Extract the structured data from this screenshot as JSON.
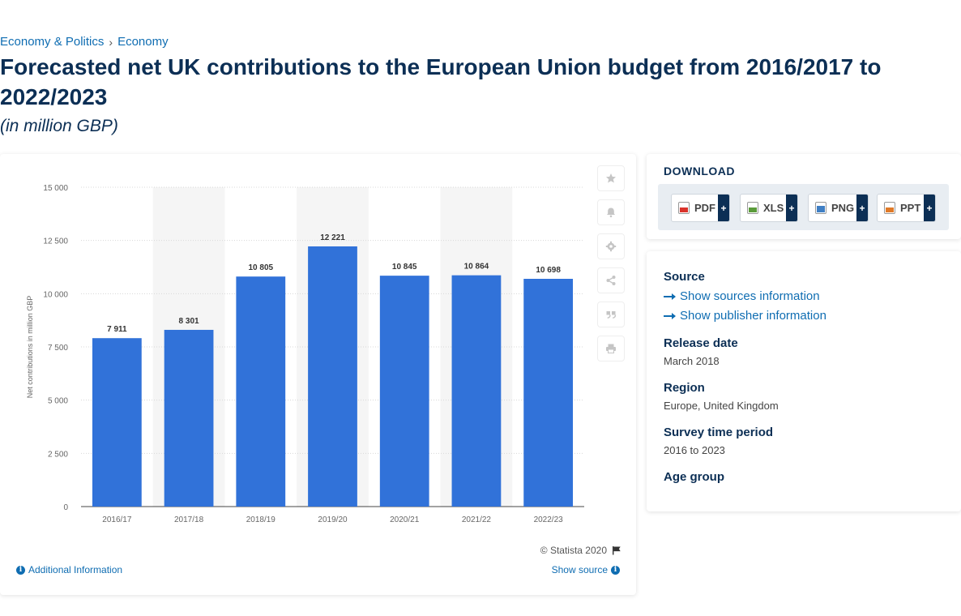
{
  "breadcrumb": {
    "items": [
      "Economy & Politics",
      "Economy"
    ],
    "sep": "›"
  },
  "page": {
    "title": "Forecasted net UK contributions to the European Union budget from 2016/2017 to 2022/2023",
    "subtitle": "(in million GBP)"
  },
  "chart_data": {
    "type": "bar",
    "title": "",
    "xlabel": "",
    "ylabel": "Net contributions in million GBP",
    "categories": [
      "2016/17",
      "2017/18",
      "2018/19",
      "2019/20",
      "2020/21",
      "2021/22",
      "2022/23"
    ],
    "values": [
      7911,
      8301,
      10805,
      12221,
      10845,
      10864,
      10698
    ],
    "value_labels": [
      "7 911",
      "8 301",
      "10 805",
      "12 221",
      "10 845",
      "10 864",
      "10 698"
    ],
    "yticks": [
      0,
      2500,
      5000,
      7500,
      10000,
      12500,
      15000
    ],
    "ytick_labels": [
      "0",
      "2 500",
      "5 000",
      "7 500",
      "10 000",
      "12 500",
      "15 000"
    ],
    "ylim": [
      0,
      15000
    ],
    "grid": true,
    "bar_color": "#3172d9",
    "band_color": "#f5f5f5"
  },
  "chart_footer": {
    "credit": "© Statista 2020",
    "additional_info": "Additional Information",
    "show_source": "Show source"
  },
  "tools": [
    "star-icon",
    "bell-icon",
    "gear-icon",
    "share-icon",
    "quote-icon",
    "print-icon"
  ],
  "download": {
    "heading": "DOWNLOAD",
    "buttons": [
      {
        "label": "PDF",
        "color": "#d9332b"
      },
      {
        "label": "XLS",
        "color": "#5a9b3a"
      },
      {
        "label": "PNG",
        "color": "#3f7fc4"
      },
      {
        "label": "PPT",
        "color": "#e07a28"
      }
    ],
    "plus": "+"
  },
  "meta": {
    "source_label": "Source",
    "show_sources": "Show sources information",
    "show_publisher": "Show publisher information",
    "release_label": "Release date",
    "release_value": "March 2018",
    "region_label": "Region",
    "region_value": "Europe, United Kingdom",
    "period_label": "Survey time period",
    "period_value": "2016 to 2023",
    "age_label": "Age group"
  }
}
